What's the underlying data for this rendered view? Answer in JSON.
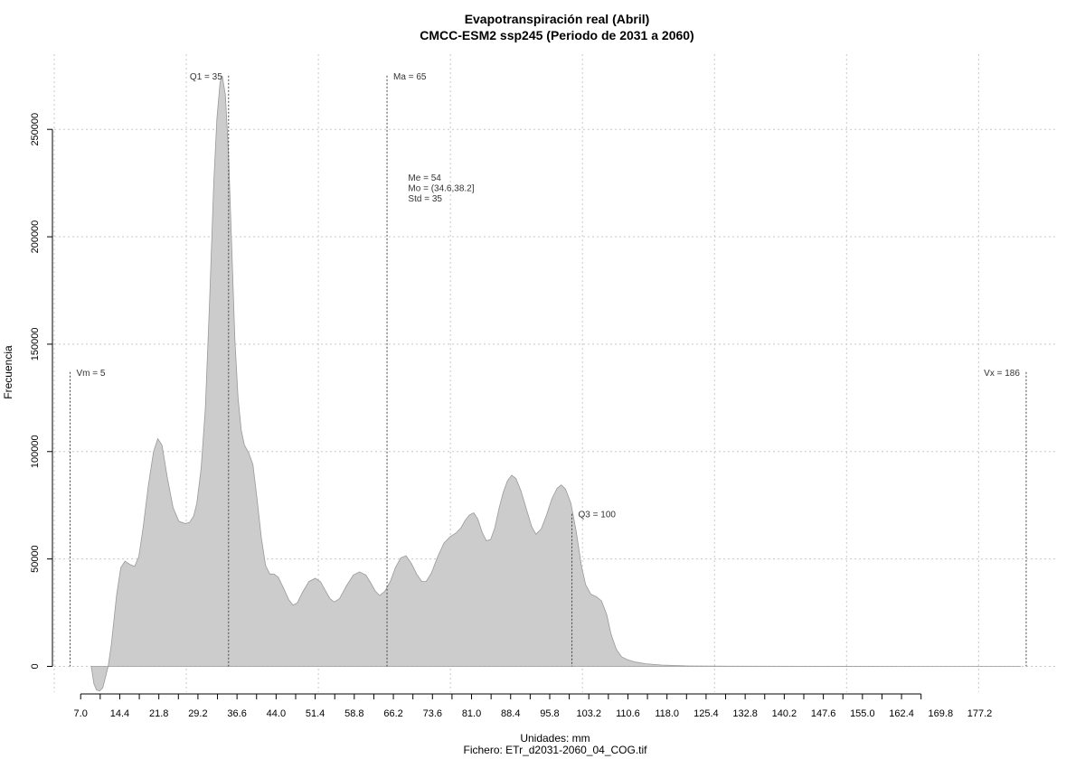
{
  "chart_data": {
    "type": "area",
    "title": "Evapotranspiración real (Abril)",
    "subtitle": "CMCC-ESM2 ssp245 (Periodo de 2031 a 2060)",
    "xlabel": "Unidades: mm",
    "ylabel": "Frecuencia",
    "caption": "Fichero: ETr_d2031-2060_04_COG.tif",
    "xlim": [
      2,
      192
    ],
    "ylim": [
      -12000,
      285000
    ],
    "grid": true,
    "fill_color": "#cccccc",
    "line_color": "#999999",
    "x_ticks": [
      "7.0",
      "14.4",
      "21.8",
      "29.2",
      "36.6",
      "44.0",
      "51.4",
      "58.8",
      "66.2",
      "73.6",
      "81.0",
      "88.4",
      "95.8",
      "103.2",
      "110.6",
      "118.0",
      "125.4",
      "132.8",
      "140.2",
      "147.6",
      "155.0",
      "162.4",
      "169.8",
      "177.2"
    ],
    "y_ticks": [
      0,
      50000,
      100000,
      150000,
      200000,
      250000
    ],
    "y_tick_labels": [
      "0",
      "50000",
      "100000",
      "150000",
      "200000",
      "250000"
    ],
    "x_grid": [
      2,
      27,
      52,
      77,
      102,
      127,
      152,
      177
    ],
    "vlines": [
      {
        "x": 5,
        "label": "Vm = 5",
        "top": 137000,
        "label_side": "right"
      },
      {
        "x": 35,
        "label": "Q1 = 35",
        "top": 275000,
        "label_side": "left"
      },
      {
        "x": 65,
        "label": "Ma = 65",
        "top": 275000,
        "label_side": "right"
      },
      {
        "x": 100,
        "label": "Q3 = 100",
        "top": 71000,
        "label_side": "right"
      },
      {
        "x": 186,
        "label": "Vx = 186",
        "top": 137000,
        "label_side": "left"
      }
    ],
    "stats": [
      "Me = 54",
      "Mo = (34.6,38.2]",
      "Std = 35"
    ],
    "stats_anchor": {
      "x": 69,
      "y": 226000
    },
    "points": [
      [
        9.0,
        0
      ],
      [
        9.5,
        -8000
      ],
      [
        10.0,
        -11000
      ],
      [
        10.6,
        -11500
      ],
      [
        11.2,
        -10000
      ],
      [
        11.8,
        -4000
      ],
      [
        12.2,
        0
      ],
      [
        12.8,
        10000
      ],
      [
        13.8,
        33000
      ],
      [
        14.6,
        46000
      ],
      [
        15.4,
        49000
      ],
      [
        16.3,
        47500
      ],
      [
        17.2,
        46500
      ],
      [
        18.0,
        51000
      ],
      [
        18.8,
        64000
      ],
      [
        19.8,
        84000
      ],
      [
        20.8,
        100000
      ],
      [
        21.6,
        106000
      ],
      [
        22.4,
        103000
      ],
      [
        23.4,
        88000
      ],
      [
        24.5,
        74000
      ],
      [
        25.6,
        67500
      ],
      [
        26.8,
        66500
      ],
      [
        27.6,
        67000
      ],
      [
        28.4,
        70000
      ],
      [
        29.0,
        76000
      ],
      [
        29.8,
        92000
      ],
      [
        30.6,
        120000
      ],
      [
        31.4,
        170000
      ],
      [
        32.2,
        225000
      ],
      [
        32.8,
        255000
      ],
      [
        33.4,
        272000
      ],
      [
        33.8,
        275000
      ],
      [
        34.4,
        266000
      ],
      [
        35.0,
        238000
      ],
      [
        35.6,
        195000
      ],
      [
        36.2,
        152000
      ],
      [
        36.8,
        125000
      ],
      [
        37.4,
        110000
      ],
      [
        38.0,
        103000
      ],
      [
        38.8,
        99500
      ],
      [
        39.6,
        94000
      ],
      [
        40.4,
        78000
      ],
      [
        41.2,
        60000
      ],
      [
        42.0,
        47000
      ],
      [
        42.8,
        43000
      ],
      [
        43.6,
        43000
      ],
      [
        44.4,
        41500
      ],
      [
        45.4,
        36500
      ],
      [
        46.4,
        31000
      ],
      [
        47.2,
        28500
      ],
      [
        48.0,
        29500
      ],
      [
        49.0,
        34500
      ],
      [
        50.2,
        39500
      ],
      [
        51.4,
        41000
      ],
      [
        52.4,
        39500
      ],
      [
        53.4,
        35000
      ],
      [
        54.2,
        31500
      ],
      [
        55.0,
        30000
      ],
      [
        56.0,
        31500
      ],
      [
        57.2,
        37000
      ],
      [
        58.6,
        42500
      ],
      [
        59.8,
        44000
      ],
      [
        61.0,
        42500
      ],
      [
        62.0,
        38500
      ],
      [
        62.8,
        35000
      ],
      [
        63.6,
        33000
      ],
      [
        64.6,
        35000
      ],
      [
        65.6,
        39500
      ],
      [
        66.6,
        46000
      ],
      [
        67.6,
        50500
      ],
      [
        68.6,
        51500
      ],
      [
        69.6,
        48000
      ],
      [
        70.6,
        43000
      ],
      [
        71.6,
        39500
      ],
      [
        72.4,
        39500
      ],
      [
        73.4,
        43500
      ],
      [
        74.6,
        51000
      ],
      [
        75.8,
        57500
      ],
      [
        77.0,
        60500
      ],
      [
        78.0,
        62000
      ],
      [
        79.0,
        64500
      ],
      [
        79.8,
        68000
      ],
      [
        80.6,
        70500
      ],
      [
        81.4,
        71500
      ],
      [
        82.2,
        68500
      ],
      [
        83.0,
        62500
      ],
      [
        83.8,
        58500
      ],
      [
        84.6,
        59000
      ],
      [
        85.4,
        64500
      ],
      [
        86.2,
        73500
      ],
      [
        87.0,
        81000
      ],
      [
        87.8,
        86500
      ],
      [
        88.6,
        89000
      ],
      [
        89.4,
        87500
      ],
      [
        90.4,
        81500
      ],
      [
        91.4,
        73000
      ],
      [
        92.4,
        65000
      ],
      [
        93.2,
        61500
      ],
      [
        94.2,
        64000
      ],
      [
        95.2,
        70500
      ],
      [
        96.2,
        78000
      ],
      [
        97.2,
        83000
      ],
      [
        98.0,
        84500
      ],
      [
        98.8,
        82500
      ],
      [
        99.8,
        76000
      ],
      [
        100.8,
        63000
      ],
      [
        101.8,
        47000
      ],
      [
        102.6,
        38000
      ],
      [
        103.6,
        33500
      ],
      [
        104.6,
        32500
      ],
      [
        105.6,
        30500
      ],
      [
        106.6,
        24000
      ],
      [
        107.4,
        15000
      ],
      [
        108.4,
        8000
      ],
      [
        109.4,
        4500
      ],
      [
        110.6,
        3000
      ],
      [
        112.0,
        2000
      ],
      [
        114.0,
        1200
      ],
      [
        117.0,
        600
      ],
      [
        122.0,
        200
      ],
      [
        130.0,
        60
      ],
      [
        150.0,
        20
      ],
      [
        175.0,
        10
      ],
      [
        185.0,
        0
      ]
    ]
  }
}
